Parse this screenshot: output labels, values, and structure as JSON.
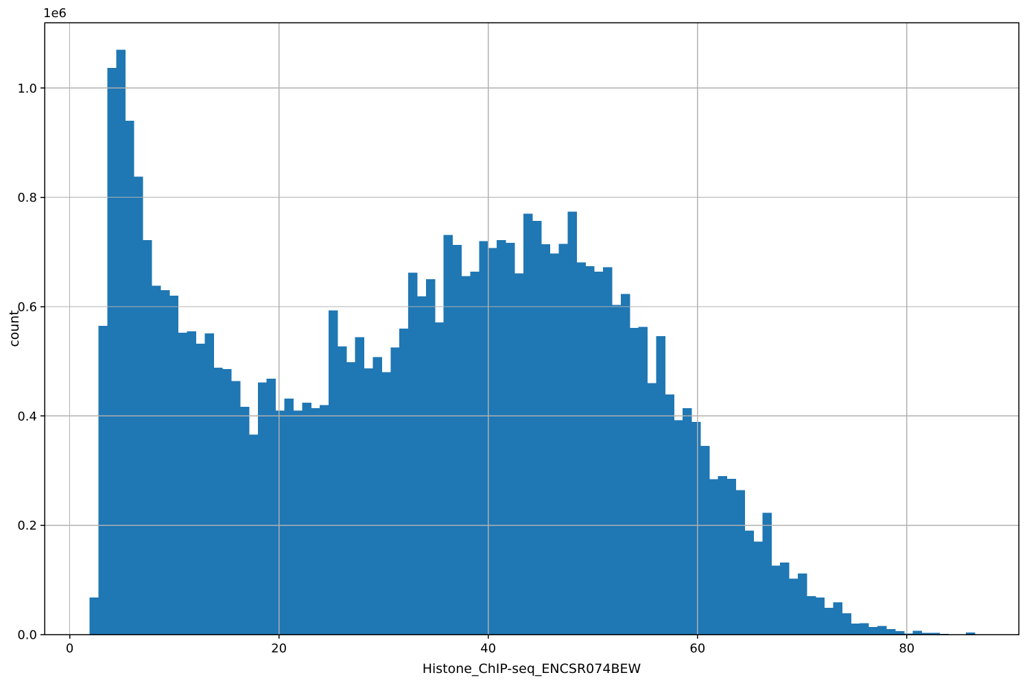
{
  "figure": {
    "background": "#ffffff"
  },
  "chart_data": {
    "type": "bar",
    "subtype": "histogram",
    "title": "",
    "xlabel": "Histone_ChIP-seq_ENCSR074BEW",
    "ylabel": "count",
    "y_offset_label": "1e6",
    "bin_start": 1.9,
    "bin_width": 0.846,
    "counts": [
      68000,
      565000,
      1037000,
      1070000,
      940000,
      838000,
      722000,
      638000,
      630000,
      620000,
      552000,
      555000,
      532000,
      551000,
      488000,
      486000,
      464000,
      417000,
      366000,
      461000,
      468000,
      410000,
      432000,
      410000,
      424000,
      414000,
      420000,
      593000,
      527000,
      498000,
      544000,
      487000,
      508000,
      480000,
      525000,
      560000,
      662000,
      619000,
      650000,
      571000,
      731000,
      713000,
      656000,
      664000,
      720000,
      707000,
      722000,
      717000,
      661000,
      770000,
      757000,
      714000,
      697000,
      715000,
      774000,
      681000,
      674000,
      664000,
      672000,
      603000,
      623000,
      561000,
      563000,
      460000,
      546000,
      439000,
      392000,
      414000,
      389000,
      345000,
      284000,
      290000,
      285000,
      264000,
      190000,
      170000,
      223000,
      126000,
      132000,
      102000,
      112000,
      70000,
      68000,
      49000,
      59000,
      39000,
      20000,
      21000,
      14000,
      16000,
      10000,
      6000,
      2000,
      7000,
      3000,
      3000,
      1000,
      0,
      0,
      4000
    ],
    "x_ticks": [
      0,
      20,
      40,
      60,
      80
    ],
    "x_tick_labels": [
      "0",
      "20",
      "40",
      "60",
      "80"
    ],
    "y_ticks": [
      0,
      200000,
      400000,
      600000,
      800000,
      1000000
    ],
    "y_tick_labels": [
      "0.0",
      "0.2",
      "0.4",
      "0.6",
      "0.8",
      "1.0"
    ],
    "xlim": [
      -2.4,
      90.7
    ],
    "ylim": [
      0,
      1119600
    ],
    "grid": true,
    "legend_position": "none",
    "bar_color": "#1f77b4",
    "grid_color": "#b0b0b0",
    "spine_color": "#000000",
    "text_color": "#000000"
  }
}
